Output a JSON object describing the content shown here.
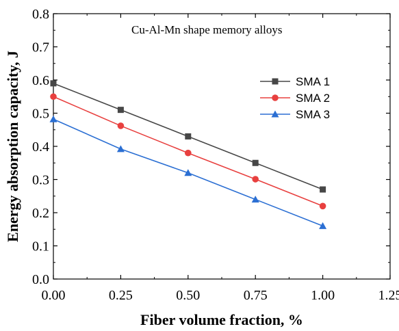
{
  "chart_data": {
    "type": "line",
    "title": "Cu-Al-Mn shape memory alloys",
    "xlabel": "Fiber volume fraction, %",
    "ylabel": "Energy absorption capacity, J",
    "xlim": [
      0,
      1.25
    ],
    "ylim": [
      0,
      0.8
    ],
    "xticks": [
      "0.00",
      "0.25",
      "0.50",
      "0.75",
      "1.00",
      "1.25"
    ],
    "yticks": [
      "0.0",
      "0.1",
      "0.2",
      "0.3",
      "0.4",
      "0.5",
      "0.6",
      "0.7",
      "0.8"
    ],
    "grid": false,
    "legend_position": "right",
    "x": [
      0,
      0.25,
      0.5,
      0.75,
      1.0
    ],
    "series": [
      {
        "name": "SMA 1",
        "values": [
          0.59,
          0.51,
          0.43,
          0.35,
          0.27
        ],
        "color": "#474747",
        "marker": "square"
      },
      {
        "name": "SMA 2",
        "values": [
          0.55,
          0.462,
          0.38,
          0.301,
          0.22
        ],
        "color": "#e8403f",
        "marker": "circle"
      },
      {
        "name": "SMA 3",
        "values": [
          0.482,
          0.392,
          0.32,
          0.24,
          0.16
        ],
        "color": "#2b6fd3",
        "marker": "triangle"
      }
    ]
  }
}
